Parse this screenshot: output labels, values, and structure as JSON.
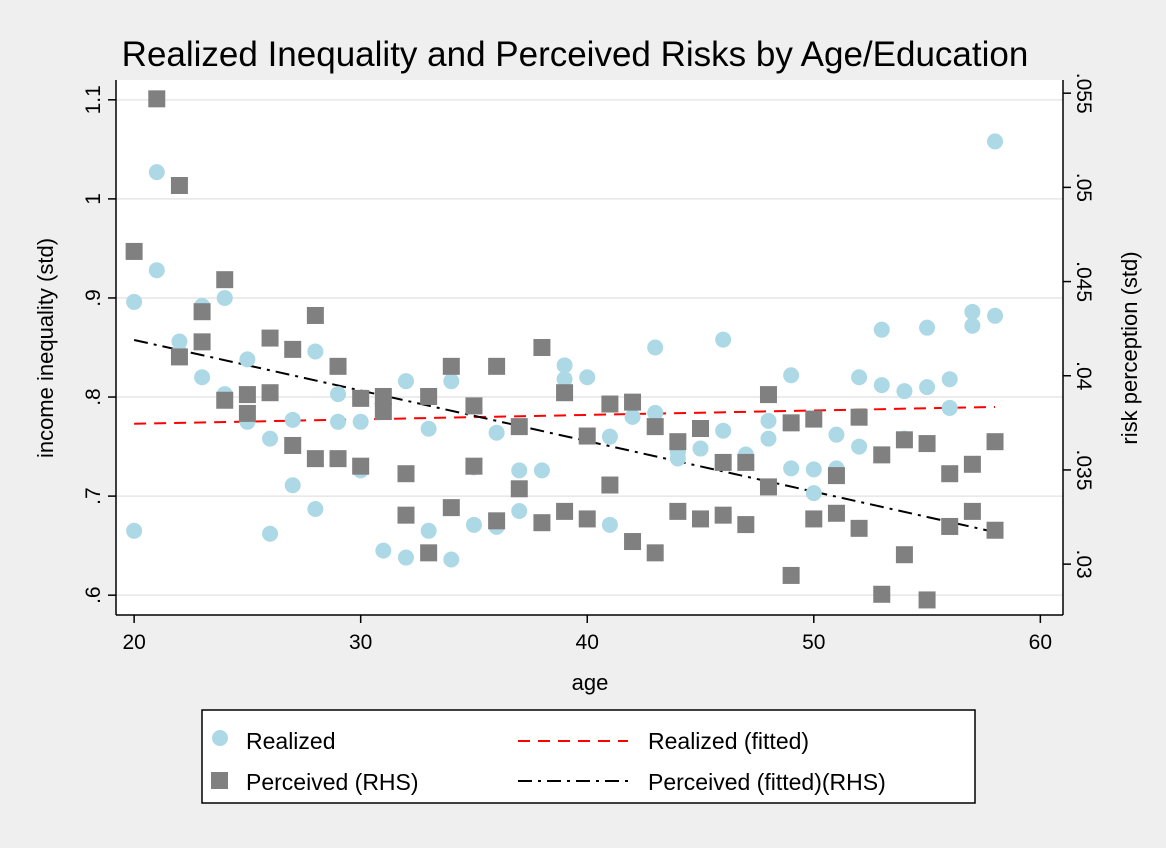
{
  "chart_data": {
    "type": "scatter",
    "title": "Realized Inequality and Perceived Risks by Age/Education",
    "xlabel": "age",
    "ylabel": "income inequality (std)",
    "y2label": "risk perception (std)",
    "xlim": [
      19.2,
      61
    ],
    "ylim": [
      0.58,
      1.12
    ],
    "y2lim": [
      0.0273,
      0.0557
    ],
    "xticks": [
      20,
      30,
      40,
      50,
      60
    ],
    "yticks": [
      0.6,
      0.7,
      0.8,
      0.9,
      1.0,
      1.1
    ],
    "ytick_labels": [
      ".6",
      ".7",
      ".8",
      ".9",
      "1",
      "1.1"
    ],
    "y2ticks": [
      0.03,
      0.035,
      0.04,
      0.045,
      0.05,
      0.055
    ],
    "y2tick_labels": [
      ".03",
      ".035",
      ".04",
      ".045",
      ".05",
      ".055"
    ],
    "grid": true,
    "legend_position": "bottom",
    "colors": {
      "realized": "#add8e6",
      "perceived": "#808080",
      "realized_fit": "#ff0000",
      "perceived_fit": "#000000",
      "plot_bg": "#ffffff",
      "outer_bg": "#efefef"
    },
    "series": [
      {
        "name": "Realized",
        "axis": "left",
        "marker": "circle",
        "points": [
          [
            20,
            0.896
          ],
          [
            20,
            0.665
          ],
          [
            21,
            1.027
          ],
          [
            21,
            0.928
          ],
          [
            22,
            0.856
          ],
          [
            22,
            0.845
          ],
          [
            23,
            0.892
          ],
          [
            23,
            0.82
          ],
          [
            24,
            0.9
          ],
          [
            24,
            0.803
          ],
          [
            25,
            0.838
          ],
          [
            25,
            0.775
          ],
          [
            26,
            0.758
          ],
          [
            26,
            0.662
          ],
          [
            27,
            0.777
          ],
          [
            27,
            0.711
          ],
          [
            28,
            0.846
          ],
          [
            28,
            0.687
          ],
          [
            29,
            0.803
          ],
          [
            29,
            0.775
          ],
          [
            30,
            0.775
          ],
          [
            30,
            0.726
          ],
          [
            31,
            0.645
          ],
          [
            32,
            0.816
          ],
          [
            32,
            0.638
          ],
          [
            33,
            0.768
          ],
          [
            33,
            0.665
          ],
          [
            34,
            0.816
          ],
          [
            34,
            0.636
          ],
          [
            35,
            0.729
          ],
          [
            35,
            0.671
          ],
          [
            36,
            0.764
          ],
          [
            36,
            0.669
          ],
          [
            37,
            0.726
          ],
          [
            37,
            0.685
          ],
          [
            38,
            0.726
          ],
          [
            39,
            0.832
          ],
          [
            39,
            0.818
          ],
          [
            40,
            0.82
          ],
          [
            41,
            0.76
          ],
          [
            41,
            0.671
          ],
          [
            42,
            0.78
          ],
          [
            43,
            0.85
          ],
          [
            43,
            0.784
          ],
          [
            44,
            0.744
          ],
          [
            44,
            0.738
          ],
          [
            45,
            0.748
          ],
          [
            46,
            0.858
          ],
          [
            46,
            0.766
          ],
          [
            47,
            0.742
          ],
          [
            48,
            0.776
          ],
          [
            48,
            0.758
          ],
          [
            49,
            0.822
          ],
          [
            49,
            0.728
          ],
          [
            50,
            0.727
          ],
          [
            50,
            0.703
          ],
          [
            51,
            0.762
          ],
          [
            51,
            0.728
          ],
          [
            52,
            0.82
          ],
          [
            52,
            0.75
          ],
          [
            53,
            0.868
          ],
          [
            53,
            0.812
          ],
          [
            54,
            0.806
          ],
          [
            54,
            0.758
          ],
          [
            55,
            0.87
          ],
          [
            55,
            0.81
          ],
          [
            56,
            0.818
          ],
          [
            56,
            0.789
          ],
          [
            57,
            0.886
          ],
          [
            57,
            0.872
          ],
          [
            58,
            1.058
          ],
          [
            58,
            0.882
          ]
        ]
      },
      {
        "name": "Perceived (RHS)",
        "axis": "right",
        "marker": "square",
        "points": [
          [
            20,
            0.0466
          ],
          [
            21,
            0.0547
          ],
          [
            22,
            0.0501
          ],
          [
            22,
            0.041
          ],
          [
            23,
            0.0434
          ],
          [
            23,
            0.0418
          ],
          [
            24,
            0.0451
          ],
          [
            24,
            0.0387
          ],
          [
            25,
            0.039
          ],
          [
            25,
            0.038
          ],
          [
            26,
            0.042
          ],
          [
            26,
            0.0391
          ],
          [
            27,
            0.0414
          ],
          [
            27,
            0.0363
          ],
          [
            28,
            0.0432
          ],
          [
            28,
            0.0356
          ],
          [
            29,
            0.0405
          ],
          [
            29,
            0.0356
          ],
          [
            30,
            0.0388
          ],
          [
            30,
            0.0352
          ],
          [
            31,
            0.0389
          ],
          [
            31,
            0.0381
          ],
          [
            32,
            0.0348
          ],
          [
            32,
            0.0326
          ],
          [
            33,
            0.0389
          ],
          [
            33,
            0.0306
          ],
          [
            34,
            0.0405
          ],
          [
            34,
            0.033
          ],
          [
            35,
            0.0384
          ],
          [
            35,
            0.0352
          ],
          [
            36,
            0.0405
          ],
          [
            36,
            0.0323
          ],
          [
            37,
            0.0373
          ],
          [
            37,
            0.034
          ],
          [
            38,
            0.0415
          ],
          [
            38,
            0.0322
          ],
          [
            39,
            0.0391
          ],
          [
            39,
            0.0328
          ],
          [
            40,
            0.0368
          ],
          [
            40,
            0.0324
          ],
          [
            41,
            0.0385
          ],
          [
            41,
            0.0342
          ],
          [
            42,
            0.0386
          ],
          [
            42,
            0.0312
          ],
          [
            43,
            0.0373
          ],
          [
            43,
            0.0306
          ],
          [
            44,
            0.0365
          ],
          [
            44,
            0.0328
          ],
          [
            45,
            0.0372
          ],
          [
            45,
            0.0324
          ],
          [
            46,
            0.0354
          ],
          [
            46,
            0.0326
          ],
          [
            47,
            0.0354
          ],
          [
            47,
            0.0321
          ],
          [
            48,
            0.039
          ],
          [
            48,
            0.0341
          ],
          [
            49,
            0.0375
          ],
          [
            49,
            0.0294
          ],
          [
            50,
            0.0377
          ],
          [
            50,
            0.0324
          ],
          [
            51,
            0.0347
          ],
          [
            51,
            0.0327
          ],
          [
            52,
            0.0378
          ],
          [
            52,
            0.0319
          ],
          [
            53,
            0.0358
          ],
          [
            53,
            0.0284
          ],
          [
            54,
            0.0366
          ],
          [
            54,
            0.0305
          ],
          [
            55,
            0.0364
          ],
          [
            55,
            0.0281
          ],
          [
            56,
            0.0348
          ],
          [
            56,
            0.032
          ],
          [
            57,
            0.0353
          ],
          [
            57,
            0.0328
          ],
          [
            58,
            0.0365
          ],
          [
            58,
            0.0318
          ]
        ]
      }
    ],
    "fits": [
      {
        "name": "Realized (fitted)",
        "axis": "left",
        "style": "dashed",
        "x": [
          20,
          58
        ],
        "y": [
          0.773,
          0.79
        ]
      },
      {
        "name": "Perceived (fitted)(RHS)",
        "axis": "right",
        "style": "dash-dot",
        "x": [
          20,
          58
        ],
        "y": [
          0.0419,
          0.0317
        ]
      }
    ]
  },
  "legend": {
    "items": [
      {
        "label": "Realized",
        "symbol": "circle"
      },
      {
        "label": "Realized (fitted)",
        "symbol": "dashed-line"
      },
      {
        "label": "Perceived (RHS)",
        "symbol": "square"
      },
      {
        "label": "Perceived (fitted)(RHS)",
        "symbol": "dash-dot-line"
      }
    ]
  }
}
